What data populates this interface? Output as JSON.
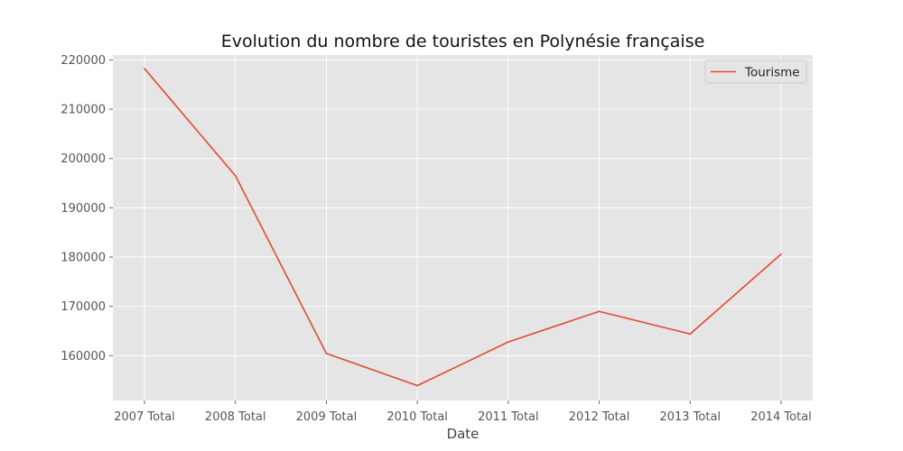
{
  "chart_data": {
    "type": "line",
    "title": "Evolution du nombre de touristes en Polynésie française",
    "xlabel": "Date",
    "ylabel": "",
    "categories": [
      "2007 Total",
      "2008 Total",
      "2009 Total",
      "2010 Total",
      "2011 Total",
      "2012 Total",
      "2013 Total",
      "2014 Total"
    ],
    "series": [
      {
        "name": "Tourisme",
        "color": "#e24a33",
        "values": [
          218241,
          196496,
          160447,
          153919,
          162776,
          168978,
          164393,
          180602
        ]
      }
    ],
    "yticks": [
      "160000",
      "170000",
      "180000",
      "190000",
      "200000",
      "210000",
      "220000"
    ],
    "ylim": [
      150900,
      221000
    ],
    "grid": true,
    "legend_position": "top-right",
    "plot_background": "#e5e5e5",
    "grid_color": "#ffffff"
  }
}
